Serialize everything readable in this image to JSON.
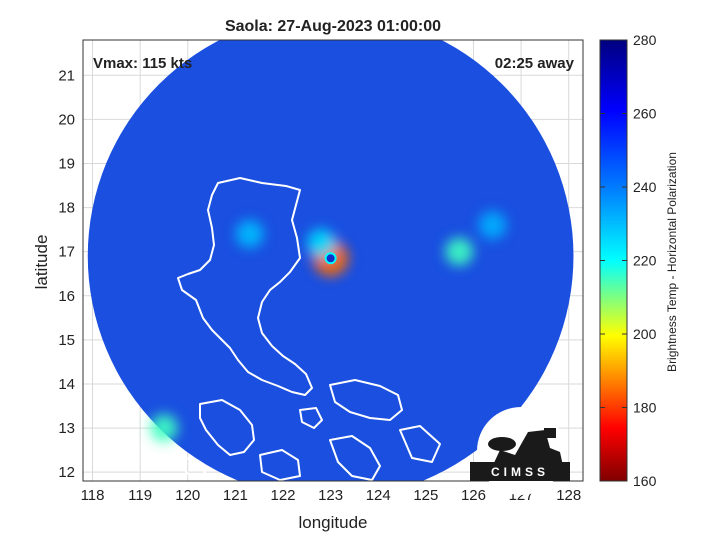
{
  "chart_data": {
    "type": "heatmap",
    "title": "Saola: 27-Aug-2023 01:00:00",
    "xlabel": "longitude",
    "ylabel": "latitude",
    "xlim": [
      117.8,
      128.3
    ],
    "ylim": [
      11.8,
      21.8
    ],
    "xticks": [
      118,
      119,
      120,
      121,
      122,
      123,
      124,
      125,
      126,
      127,
      128
    ],
    "yticks": [
      12,
      13,
      14,
      15,
      16,
      17,
      18,
      19,
      20,
      21
    ],
    "grid": true,
    "annotations": {
      "vmax": "Vmax: 115 kts",
      "time_offset": "02:25 away"
    },
    "colorbar": {
      "label": "Brightness Temp - Horizontal Polarization",
      "min": 160,
      "max": 280,
      "ticks": [
        160,
        180,
        200,
        220,
        240,
        260,
        280
      ],
      "colormap": "jet"
    },
    "swath": {
      "center_lon": 123.0,
      "center_lat": 16.9,
      "radius_deg": 5.1
    },
    "storm_eye": {
      "lon": 123.0,
      "lat": 16.85
    },
    "cold_regions": [
      {
        "lon": 123.0,
        "lat": 16.85,
        "tb": 185
      },
      {
        "lon": 122.8,
        "lat": 17.2,
        "tb": 225
      },
      {
        "lon": 121.3,
        "lat": 17.4,
        "tb": 230
      },
      {
        "lon": 125.7,
        "lat": 17.0,
        "tb": 215
      },
      {
        "lon": 126.4,
        "lat": 17.6,
        "tb": 232
      },
      {
        "lon": 119.5,
        "lat": 13.0,
        "tb": 215
      }
    ]
  },
  "logo": {
    "text": "CIMSS"
  },
  "colors": {
    "swath_base": "#1a4fe0",
    "coastline": "#ffffff",
    "grid": "#d9d9d9",
    "frame": "#333333"
  }
}
